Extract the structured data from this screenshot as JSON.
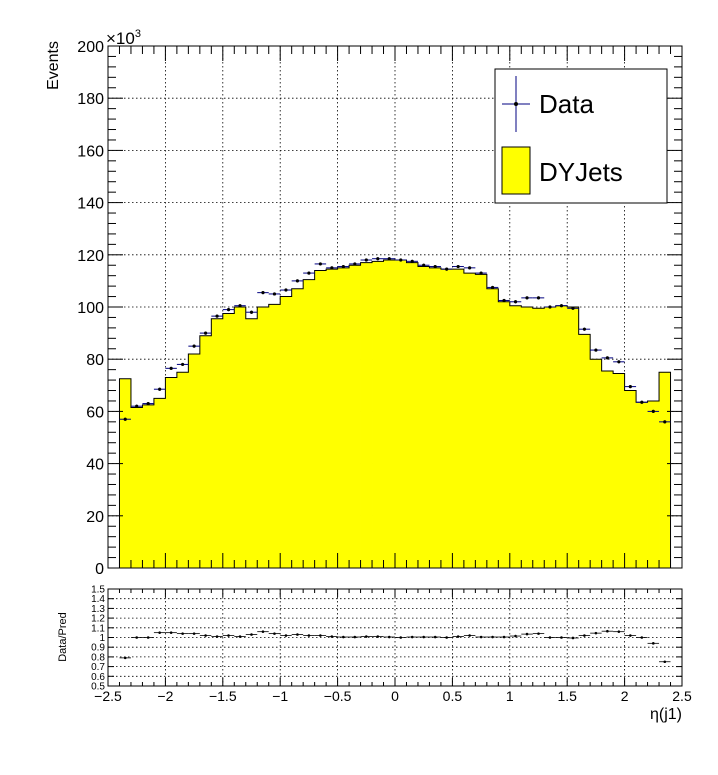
{
  "chart_data": [
    {
      "type": "histogram",
      "ylabel": "Events",
      "y_multiplier": "×10",
      "y_multiplier_exp": "3",
      "xlim": [
        -2.5,
        2.5
      ],
      "ylim": [
        0,
        200
      ],
      "y_ticks": [
        "0",
        "20",
        "40",
        "60",
        "80",
        "100",
        "120",
        "140",
        "160",
        "180",
        "200"
      ],
      "x_ticks": [
        "−2.5",
        "−2",
        "−1.5",
        "−1",
        "−0.5",
        "0",
        "0.5",
        "1",
        "1.5",
        "2",
        "2.5"
      ],
      "grid": true,
      "legend_position": "top-right",
      "legend": [
        {
          "label": "Data",
          "style": "marker-errorbar",
          "color": "#000080"
        },
        {
          "label": "DYJets",
          "style": "filled",
          "color": "#ffff00"
        }
      ],
      "bin_edges": [
        -2.4,
        -2.3,
        -2.2,
        -2.1,
        -2.0,
        -1.9,
        -1.8,
        -1.7,
        -1.6,
        -1.5,
        -1.4,
        -1.3,
        -1.2,
        -1.1,
        -1.0,
        -0.9,
        -0.8,
        -0.7,
        -0.6,
        -0.5,
        -0.4,
        -0.3,
        -0.2,
        -0.1,
        0.0,
        0.1,
        0.2,
        0.3,
        0.4,
        0.5,
        0.6,
        0.7,
        0.8,
        0.9,
        1.0,
        1.1,
        1.2,
        1.3,
        1.4,
        1.5,
        1.6,
        1.7,
        1.8,
        1.9,
        2.0,
        2.1,
        2.2,
        2.3,
        2.4
      ],
      "series": [
        {
          "name": "DYJets",
          "values": [
            72.5,
            61.5,
            62.5,
            65.0,
            73.0,
            75.0,
            82.0,
            89.0,
            95.5,
            97.5,
            100.0,
            95.5,
            100.0,
            101.0,
            104.0,
            107.0,
            110.5,
            114.0,
            114.5,
            115.0,
            116.0,
            117.0,
            117.5,
            118.0,
            118.0,
            117.0,
            115.5,
            115.0,
            114.5,
            114.5,
            113.0,
            112.5,
            107.0,
            102.0,
            100.5,
            100.0,
            99.5,
            100.0,
            100.5,
            100.0,
            89.5,
            80.0,
            75.5,
            74.5,
            68.0,
            63.5,
            64.0,
            75.0
          ]
        },
        {
          "name": "Data",
          "values": [
            57.0,
            62.0,
            63.0,
            68.5,
            76.5,
            78.0,
            85.0,
            90.0,
            96.5,
            99.0,
            100.5,
            98.0,
            105.5,
            105.0,
            106.5,
            110.0,
            113.0,
            116.5,
            115.0,
            115.5,
            116.5,
            118.0,
            118.5,
            118.5,
            118.0,
            117.5,
            116.0,
            115.5,
            114.5,
            115.5,
            115.0,
            113.0,
            107.5,
            102.5,
            102.0,
            103.5,
            103.5,
            100.0,
            100.5,
            99.5,
            91.5,
            83.5,
            80.5,
            79.0,
            69.5,
            63.5,
            60.0,
            56.0
          ]
        }
      ]
    },
    {
      "type": "scatter",
      "ylabel": "Data/Pred",
      "xlabel": "η(j1)",
      "xlim": [
        -2.5,
        2.5
      ],
      "ylim": [
        0.5,
        1.5
      ],
      "y_ticks": [
        "0.5",
        "0.6",
        "0.7",
        "0.8",
        "0.9",
        "1",
        "1.1",
        "1.2",
        "1.3",
        "1.4",
        "1.5"
      ],
      "grid": true,
      "ratio": [
        0.79,
        1.0,
        1.0,
        1.05,
        1.05,
        1.04,
        1.04,
        1.02,
        1.01,
        1.02,
        1.01,
        1.03,
        1.06,
        1.04,
        1.02,
        1.03,
        1.02,
        1.02,
        1.01,
        1.005,
        1.005,
        1.01,
        1.01,
        1.005,
        1.0,
        1.005,
        1.005,
        1.005,
        1.0,
        1.01,
        1.02,
        1.005,
        1.005,
        1.005,
        1.015,
        1.035,
        1.04,
        1.0,
        1.0,
        0.995,
        1.02,
        1.045,
        1.065,
        1.06,
        1.02,
        1.0,
        0.94,
        0.75
      ]
    }
  ]
}
